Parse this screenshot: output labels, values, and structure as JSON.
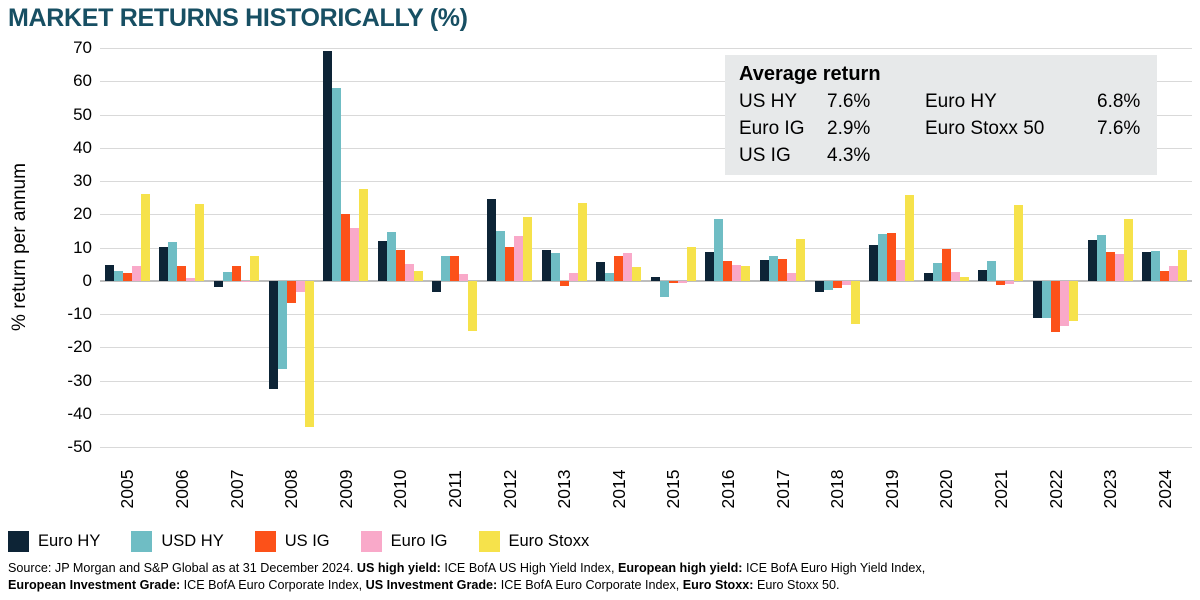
{
  "title": "MARKET RETURNS HISTORICALLY (%)",
  "colors": {
    "title_text": "#174f63",
    "grid": "#d9d9d9",
    "zero_line": "#bdbdbd",
    "box_background": "#e7e9ea"
  },
  "average_return_box": {
    "title": "Average return",
    "left_column": [
      {
        "label": "US HY",
        "value": "7.6%"
      },
      {
        "label": "Euro IG",
        "value": "2.9%"
      },
      {
        "label": "US IG",
        "value": "4.3%"
      }
    ],
    "right_column": [
      {
        "label": "Euro HY",
        "value": "6.8%"
      },
      {
        "label": "Euro Stoxx 50",
        "value": "7.6%"
      }
    ]
  },
  "chart_data": {
    "type": "bar",
    "title": "MARKET RETURNS HISTORICALLY (%)",
    "xlabel": "",
    "ylabel": "% return per annum",
    "ylim": [
      -50,
      70
    ],
    "yticks": [
      70,
      60,
      50,
      40,
      30,
      20,
      10,
      0,
      -10,
      -20,
      -30,
      -40,
      -50
    ],
    "grid": true,
    "legend_position": "bottom",
    "categories": [
      "2005",
      "2006",
      "2007",
      "2008",
      "2009",
      "2010",
      "2011",
      "2012",
      "2013",
      "2014",
      "2015",
      "2016",
      "2017",
      "2018",
      "2019",
      "2020",
      "2021",
      "2022",
      "2023",
      "2024"
    ],
    "series": [
      {
        "name": "Euro HY",
        "color": "#0d2436",
        "values": [
          4.8,
          10.3,
          -1.8,
          -32.5,
          69.0,
          12.0,
          -3.3,
          24.7,
          9.2,
          5.5,
          1.0,
          8.5,
          6.3,
          -3.5,
          10.7,
          2.3,
          3.3,
          -11.2,
          12.2,
          8.5
        ]
      },
      {
        "name": "USD HY",
        "color": "#6fbdc4",
        "values": [
          2.8,
          11.6,
          2.5,
          -26.5,
          58.0,
          14.7,
          7.3,
          15.0,
          8.2,
          2.2,
          -5.0,
          18.7,
          7.4,
          -2.7,
          14.2,
          5.2,
          6.0,
          -11.3,
          13.7,
          8.8
        ]
      },
      {
        "name": "US IG",
        "color": "#fc5119",
        "values": [
          2.2,
          4.3,
          4.5,
          -6.8,
          20.0,
          9.2,
          7.5,
          10.2,
          -1.5,
          7.5,
          -0.8,
          6.0,
          6.5,
          -2.3,
          14.3,
          9.6,
          -1.2,
          -15.5,
          8.5,
          3.0
        ]
      },
      {
        "name": "Euro IG",
        "color": "#f9a9c9",
        "values": [
          4.3,
          0.7,
          -0.5,
          -3.3,
          16.0,
          4.9,
          2.0,
          13.4,
          2.2,
          8.3,
          -0.7,
          4.8,
          2.4,
          -1.2,
          6.3,
          2.7,
          -1.0,
          -13.7,
          8.0,
          4.5
        ]
      },
      {
        "name": "Euro Stoxx",
        "color": "#f6e24b",
        "values": [
          26.0,
          23.0,
          7.3,
          -44.0,
          27.5,
          2.9,
          -15.2,
          19.3,
          23.5,
          4.0,
          10.3,
          4.4,
          12.7,
          -13.0,
          25.8,
          1.0,
          22.7,
          -12.0,
          18.5,
          9.2
        ]
      }
    ]
  },
  "source": {
    "lines": [
      [
        {
          "text": "Source: JP Morgan and S&P Global as at 31 December 2024. ",
          "bold": false
        },
        {
          "text": "US high yield:",
          "bold": true
        },
        {
          "text": " ICE BofA US High Yield Index, ",
          "bold": false
        },
        {
          "text": "European high yield:",
          "bold": true
        },
        {
          "text": " ICE BofA Euro High Yield Index,",
          "bold": false
        }
      ],
      [
        {
          "text": "European Investment Grade:",
          "bold": true
        },
        {
          "text": " ICE BofA Euro Corporate Index, ",
          "bold": false
        },
        {
          "text": "US Investment Grade:",
          "bold": true
        },
        {
          "text": " ICE BofA Euro Corporate Index, ",
          "bold": false
        },
        {
          "text": "Euro Stoxx:",
          "bold": true
        },
        {
          "text": " Euro Stoxx 50.",
          "bold": false
        }
      ]
    ]
  }
}
